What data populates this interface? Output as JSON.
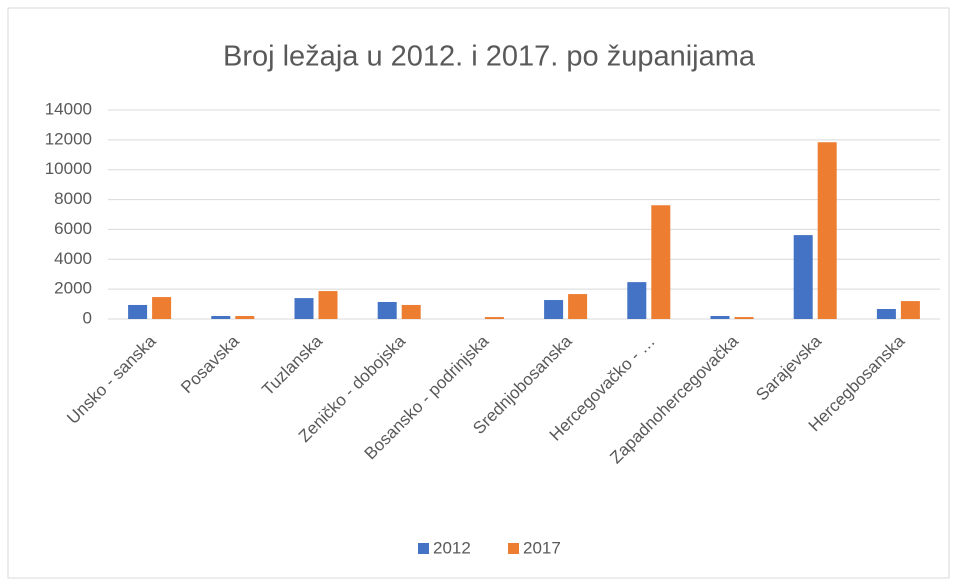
{
  "chart_data": {
    "type": "bar",
    "title": "Broj ležaja u 2012. i 2017. po županijama",
    "categories": [
      "Unsko - sanska",
      "Posavska",
      "Tuzlanska",
      "Zeničko - dobojska",
      "Bosansko - podrinjska",
      "Srednjobosanska",
      "Hercegovačko - …",
      "Zapadnohercegovačka",
      "Sarajevska",
      "Hercegbosanska"
    ],
    "series": [
      {
        "name": "2012",
        "color": "#4472c4",
        "values": [
          940,
          200,
          1400,
          1140,
          0,
          1270,
          2470,
          200,
          5620,
          670
        ]
      },
      {
        "name": "2017",
        "color": "#ed7d31",
        "values": [
          1470,
          200,
          1870,
          940,
          130,
          1670,
          7620,
          130,
          11840,
          1200
        ]
      }
    ],
    "ylim": [
      0,
      14000
    ],
    "yticks": [
      0,
      2000,
      4000,
      6000,
      8000,
      10000,
      12000,
      14000
    ],
    "grid": true,
    "legend": "bottom"
  }
}
